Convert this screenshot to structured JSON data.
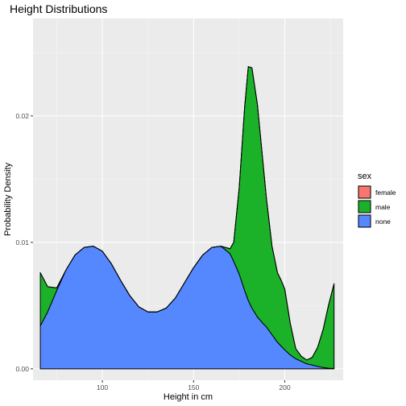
{
  "chart_data": {
    "type": "area",
    "title": "Height Distributions",
    "xlabel": "Height in cm",
    "ylabel": "Probability Density",
    "xlim": [
      62,
      232
    ],
    "ylim": [
      -0.0009,
      0.0277
    ],
    "x_ticks": [
      100,
      150,
      200
    ],
    "x_tick_labels": [
      "100",
      "150",
      "200"
    ],
    "x_minor_ticks": [
      75,
      125,
      175,
      225
    ],
    "y_ticks": [
      0.0,
      0.01,
      0.02
    ],
    "y_tick_labels": [
      "0.00",
      "0.01",
      "0.02"
    ],
    "y_minor_ticks": [
      0.005,
      0.015,
      0.025
    ],
    "grid": true,
    "stacked": true,
    "legend": {
      "title": "sex",
      "position": "right",
      "entries": [
        {
          "label": "female",
          "color": "#F8766D"
        },
        {
          "label": "male",
          "color": "#1BB22A"
        },
        {
          "label": "none",
          "color": "#5588FF"
        }
      ]
    },
    "x": [
      66,
      70,
      75,
      80,
      85,
      90,
      95,
      100,
      105,
      110,
      115,
      120,
      125,
      130,
      135,
      140,
      145,
      150,
      155,
      160,
      165,
      170,
      172,
      175,
      178,
      180,
      182,
      185,
      188,
      190,
      193,
      196,
      198,
      200,
      203,
      206,
      209,
      212,
      215,
      218,
      221,
      224,
      227
    ],
    "series": [
      {
        "name": "female",
        "color": "#F8766D",
        "values": [
          0,
          0,
          0,
          0,
          0,
          0,
          0,
          0,
          0,
          0,
          0,
          0,
          0,
          0,
          0,
          0,
          0,
          0,
          0,
          0,
          0,
          0,
          0,
          0,
          0,
          0,
          0,
          0,
          0,
          0,
          0,
          0,
          0,
          0,
          0,
          0,
          0,
          0,
          0,
          0,
          0,
          0,
          0
        ]
      },
      {
        "name": "male",
        "color": "#1BB22A",
        "values": [
          0.0042,
          0.002,
          0.0002,
          0,
          0,
          0,
          0,
          0,
          0,
          0,
          0,
          0,
          0,
          0,
          0,
          0,
          0,
          0,
          0,
          0,
          0,
          0.0004,
          0.0015,
          0.0068,
          0.0145,
          0.0185,
          0.019,
          0.0168,
          0.0128,
          0.0101,
          0.007,
          0.0055,
          0.0052,
          0.0048,
          0.0025,
          0.0008,
          0.0004,
          0.0003,
          0.0006,
          0.0015,
          0.003,
          0.005,
          0.0067
        ]
      },
      {
        "name": "none",
        "color": "#5588FF",
        "values": [
          0.0034,
          0.0045,
          0.0062,
          0.0078,
          0.009,
          0.0096,
          0.0097,
          0.0093,
          0.0083,
          0.007,
          0.0058,
          0.0049,
          0.0045,
          0.0045,
          0.0048,
          0.0056,
          0.0068,
          0.008,
          0.009,
          0.0096,
          0.0097,
          0.0091,
          0.0085,
          0.0075,
          0.0062,
          0.0054,
          0.0048,
          0.0041,
          0.0036,
          0.0033,
          0.0027,
          0.0021,
          0.0018,
          0.0015,
          0.0011,
          0.0008,
          0.0006,
          0.0004,
          0.0003,
          0.0002,
          0.0001,
          5e-05,
          3e-05
        ]
      }
    ]
  }
}
